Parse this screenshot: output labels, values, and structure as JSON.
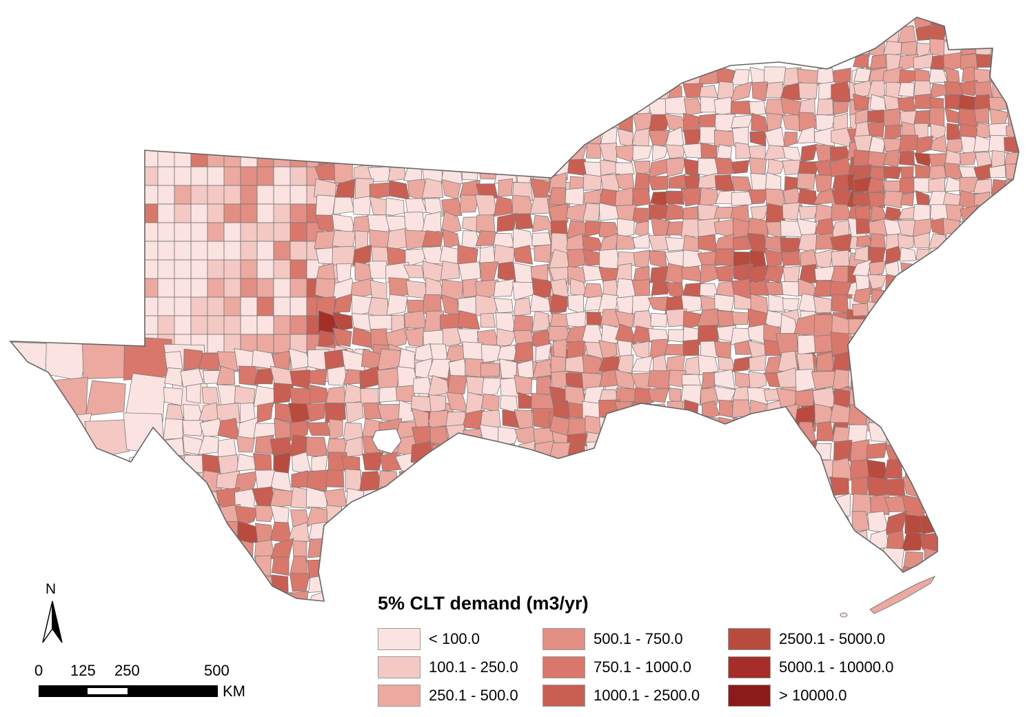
{
  "legend": {
    "title": "5% CLT demand (m3/yr)",
    "classes": [
      {
        "label": "< 100.0",
        "color": "#fbe3e1"
      },
      {
        "label": "100.1 - 250.0",
        "color": "#f5c9c3"
      },
      {
        "label": "250.1 - 500.0",
        "color": "#eba99f"
      },
      {
        "label": "500.1 - 750.0",
        "color": "#e38e82"
      },
      {
        "label": "750.1 - 1000.0",
        "color": "#d8776a"
      },
      {
        "label": "1000.1 - 2500.0",
        "color": "#c95f52"
      },
      {
        "label": "2500.1 - 5000.0",
        "color": "#b94a3e"
      },
      {
        "label": "5000.1 - 10000.0",
        "color": "#a52e28"
      },
      {
        "label": "> 10000.0",
        "color": "#8b1a1a"
      }
    ]
  },
  "north_arrow": {
    "label": "N"
  },
  "scale_bar": {
    "ticks": [
      "0",
      "125",
      "250",
      "500"
    ],
    "unit": "KM"
  },
  "map": {
    "region": "Southern United States counties",
    "boundary_color": "#7a7a7a"
  }
}
